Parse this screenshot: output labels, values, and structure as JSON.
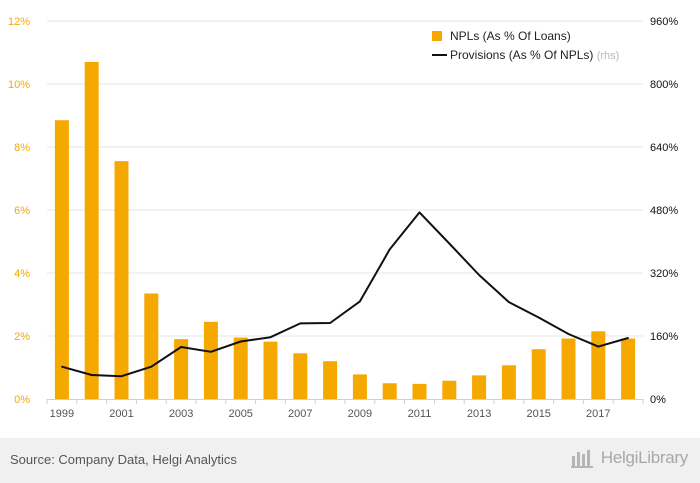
{
  "chart_data": {
    "type": "bar+line",
    "title": "",
    "x": [
      "1999",
      "2000",
      "2001",
      "2002",
      "2003",
      "2004",
      "2005",
      "2006",
      "2007",
      "2008",
      "2009",
      "2010",
      "2011",
      "2012",
      "2013",
      "2014",
      "2015",
      "2016",
      "2017",
      "2018"
    ],
    "x_tick_labels": [
      "1999",
      "2001",
      "2003",
      "2005",
      "2007",
      "2009",
      "2011",
      "2013",
      "2015",
      "2017"
    ],
    "series": [
      {
        "name": "NPLs (As % Of Loans)",
        "type": "bar",
        "axis": "left",
        "color": "#f5a800",
        "values": [
          8.85,
          10.7,
          7.55,
          3.35,
          1.9,
          2.45,
          1.95,
          1.82,
          1.45,
          1.2,
          0.78,
          0.5,
          0.48,
          0.58,
          0.75,
          1.07,
          1.58,
          1.92,
          2.15,
          1.92
        ]
      },
      {
        "name": "Provisions (As % Of NPLs)",
        "name_note": "(rhs)",
        "type": "line",
        "axis": "right",
        "color": "#111111",
        "values": [
          82,
          61,
          58,
          82,
          132,
          120,
          146,
          157,
          192,
          193,
          248,
          380,
          474,
          395,
          315,
          246,
          207,
          165,
          133,
          155
        ]
      }
    ],
    "y_left": {
      "range": [
        0,
        12
      ],
      "ticks": [
        "0%",
        "2%",
        "4%",
        "6%",
        "8%",
        "10%",
        "12%"
      ],
      "color": "#f5a800"
    },
    "y_right": {
      "range": [
        0,
        960
      ],
      "ticks": [
        "0%",
        "160%",
        "320%",
        "480%",
        "640%",
        "800%",
        "960%"
      ],
      "color": "#111111"
    },
    "grid": true,
    "legend_position": "top-right"
  },
  "footer": {
    "source": "Source: Company Data, Helgi Analytics",
    "brand": "HelgiLibrary"
  }
}
